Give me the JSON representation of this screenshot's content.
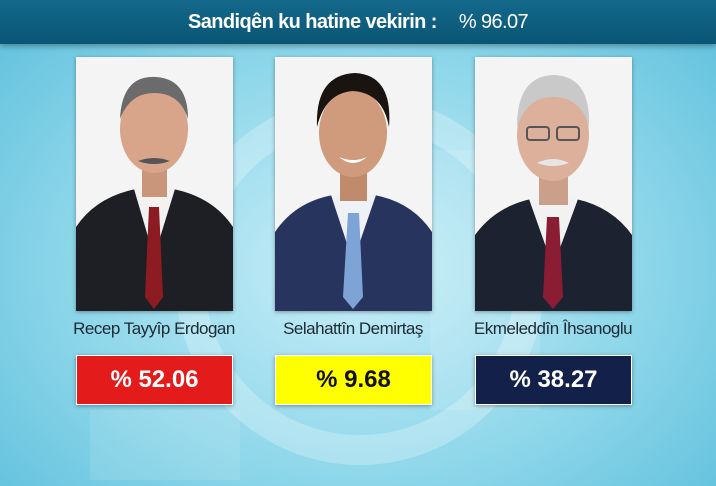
{
  "header": {
    "label": "Sandiqên ku hatine vekirin :",
    "turnout": "% 96.07"
  },
  "candidates": [
    {
      "name": "Recep Tayyîp Erdogan",
      "result": "% 52.06",
      "color": "#e31b1b",
      "text_color": "#ffffff"
    },
    {
      "name": "Selahattîn Demirtaş",
      "result": "% 9.68",
      "color": "#ffff00",
      "text_color": "#111111"
    },
    {
      "name": "Ekmeleddîn Îhsanoglu",
      "result": "% 38.27",
      "color": "#13214a",
      "text_color": "#ffffff"
    }
  ]
}
